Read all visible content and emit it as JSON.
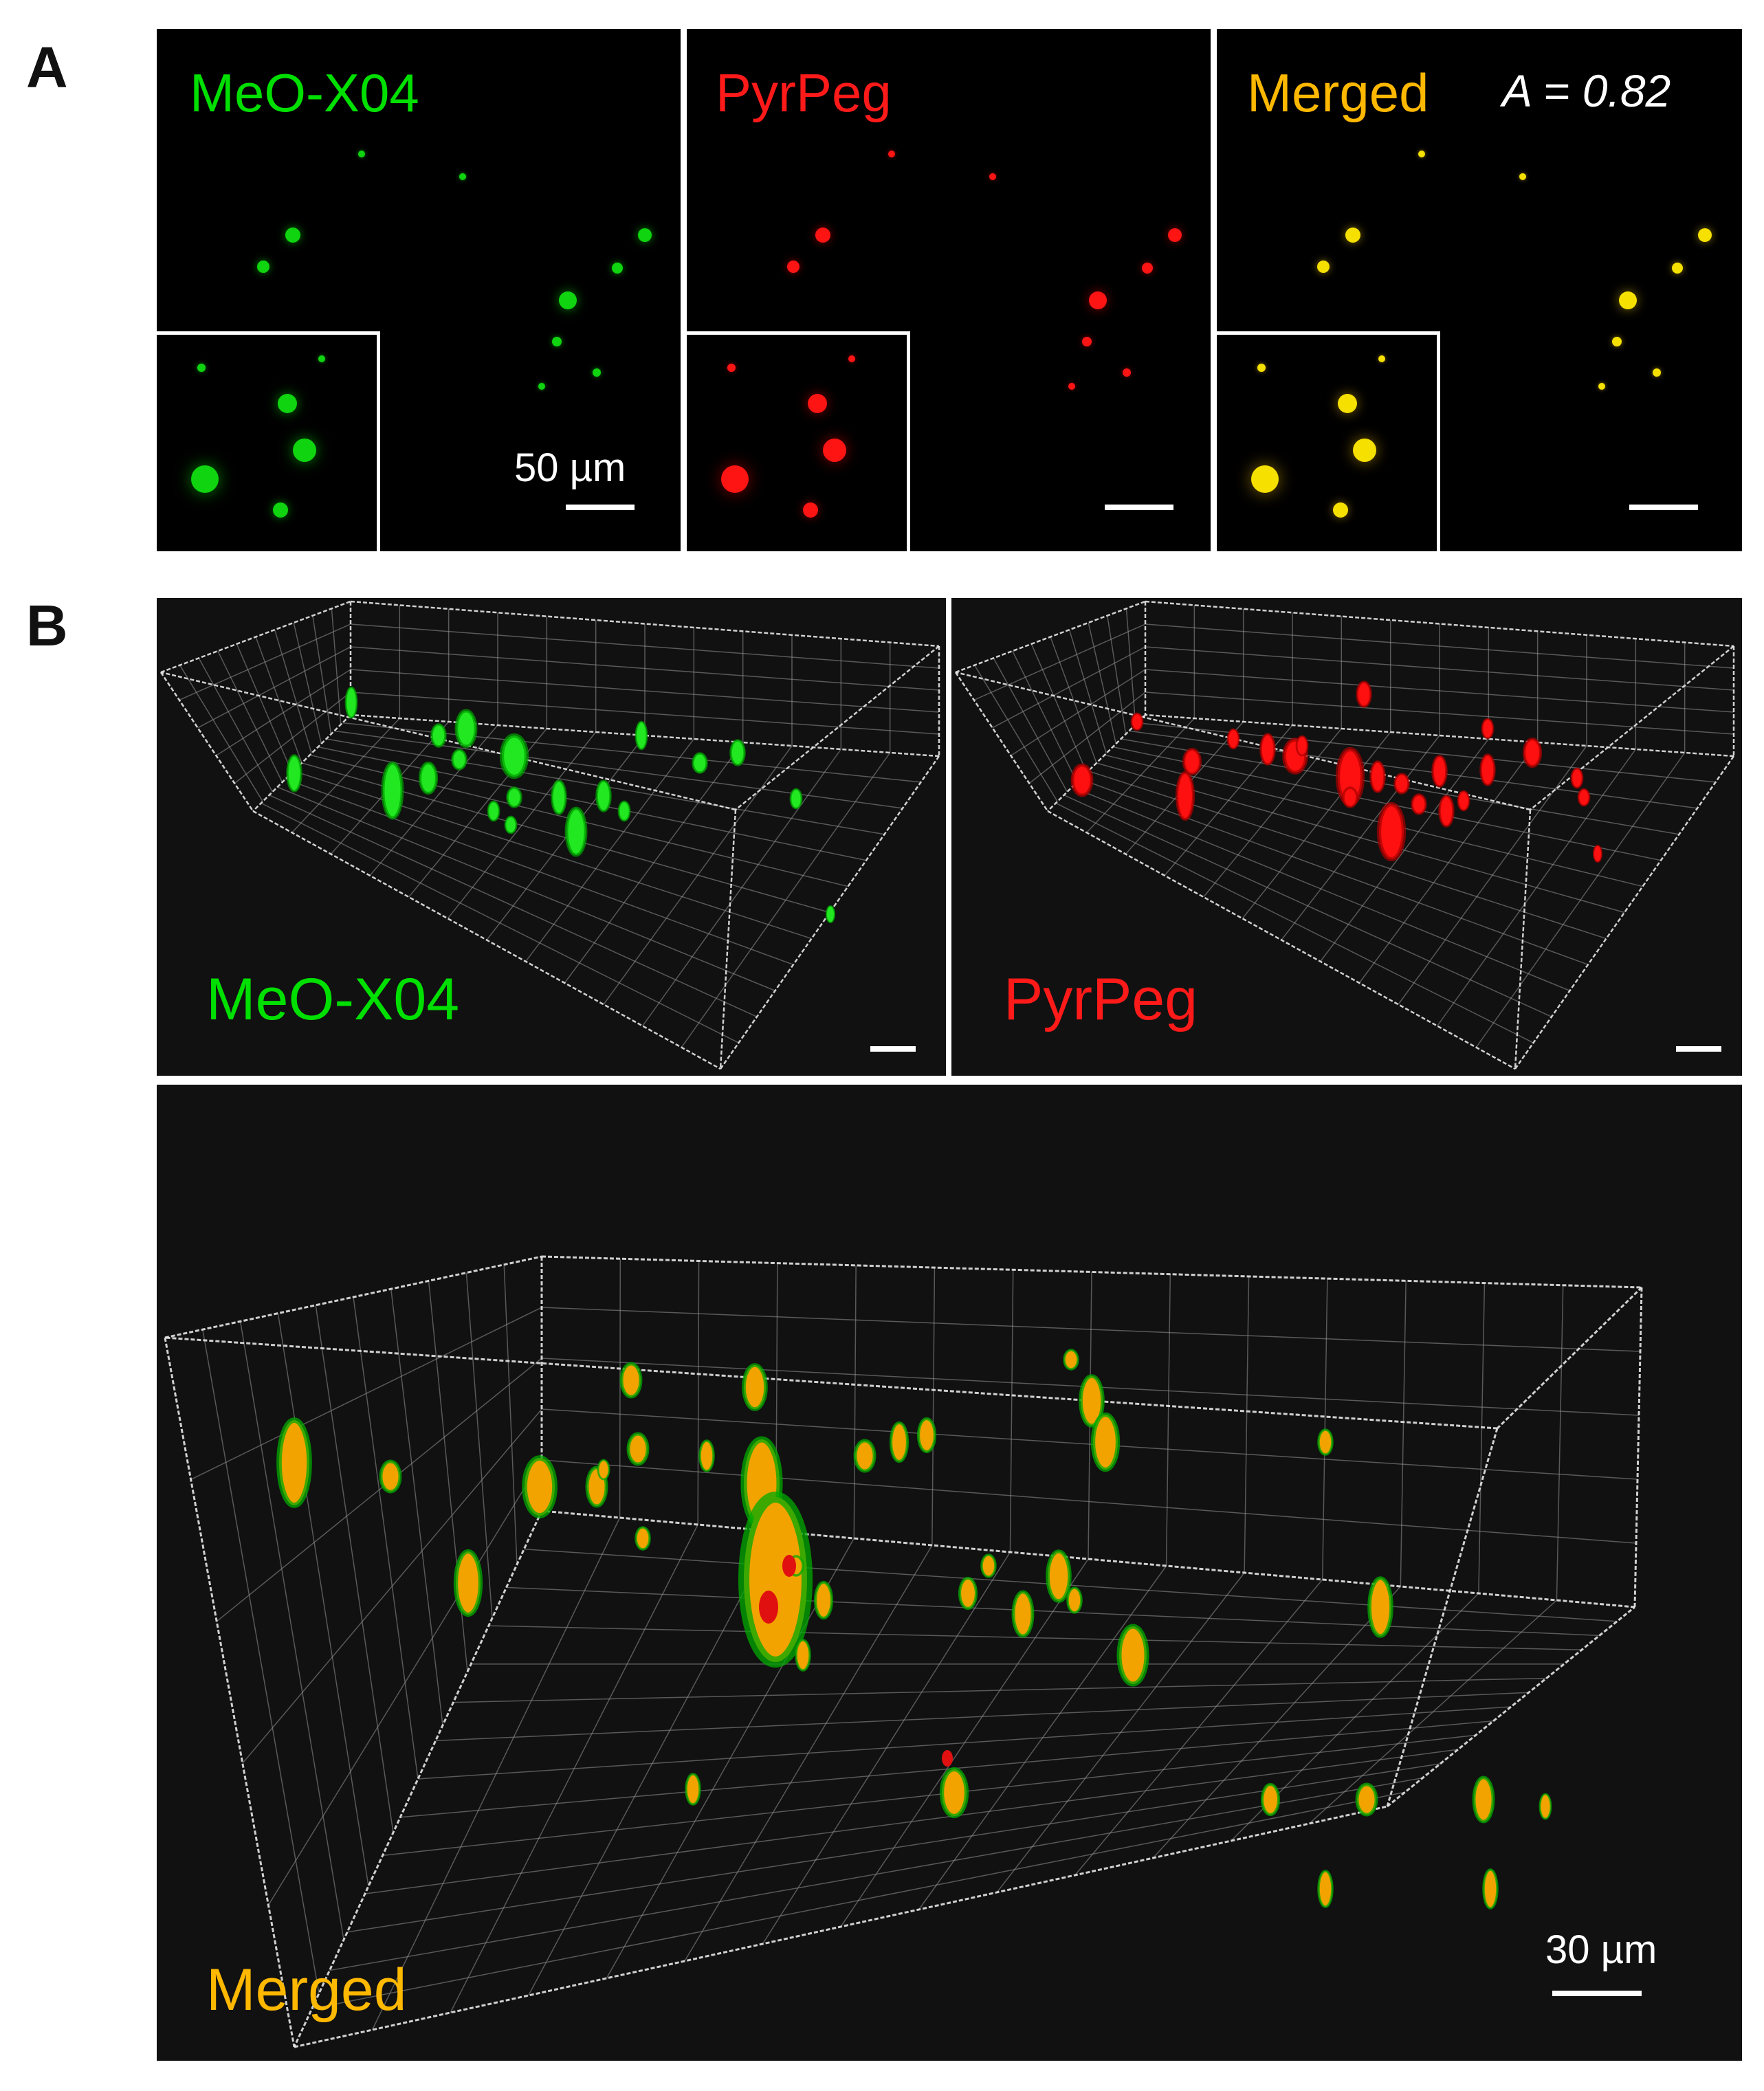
{
  "figure": {
    "panel_a_label": "A",
    "panel_b_label": "B"
  },
  "panel_a": {
    "green": {
      "label": "MeO-X04",
      "color": "#00e000"
    },
    "red": {
      "label": "PyrPeg",
      "color": "#ff1a1a"
    },
    "merged": {
      "label": "Merged",
      "color": "#ffb800",
      "coef_symbol": "A",
      "coef_rest": " = 0.82"
    },
    "scale_label": "50 µm"
  },
  "panel_b": {
    "green_label": "MeO-X04",
    "red_label": "PyrPeg",
    "merged_label": "Merged",
    "scale_label": "30 µm"
  }
}
